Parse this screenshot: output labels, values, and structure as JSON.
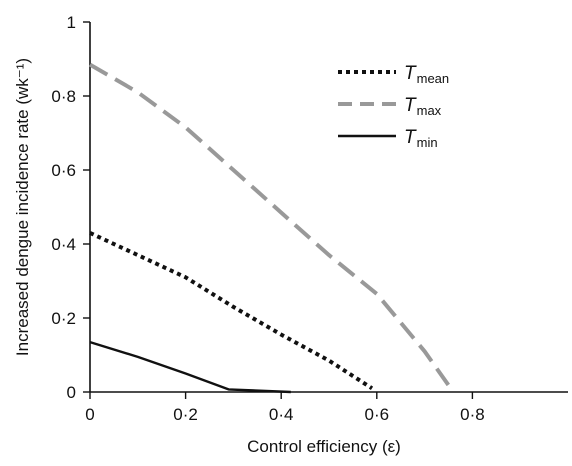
{
  "chart_data": {
    "type": "line",
    "xlabel": "Control efficiency (ε)",
    "ylabel": "Increased dengue incidence rate (wk⁻¹)",
    "xlim": [
      0,
      1
    ],
    "ylim": [
      0,
      1
    ],
    "x_ticks": [
      {
        "value": 0,
        "label": "0"
      },
      {
        "value": 0.2,
        "label": "0·2"
      },
      {
        "value": 0.4,
        "label": "0·4"
      },
      {
        "value": 0.6,
        "label": "0·6"
      },
      {
        "value": 0.8,
        "label": "0·8"
      }
    ],
    "y_ticks": [
      {
        "value": 0,
        "label": "0"
      },
      {
        "value": 0.2,
        "label": "0·2"
      },
      {
        "value": 0.4,
        "label": "0·4"
      },
      {
        "value": 0.6,
        "label": "0·6"
      },
      {
        "value": 0.8,
        "label": "0·8"
      },
      {
        "value": 1,
        "label": "1"
      }
    ],
    "grid": false,
    "legend_position": "top-right",
    "series": [
      {
        "name": "T_mean",
        "symbol": "T",
        "subscript": "mean",
        "style": "dotted",
        "color": "#111111",
        "points": [
          [
            0,
            0.43
          ],
          [
            0.1,
            0.37
          ],
          [
            0.2,
            0.31
          ],
          [
            0.3,
            0.23
          ],
          [
            0.4,
            0.155
          ],
          [
            0.5,
            0.085
          ],
          [
            0.59,
            0.01
          ]
        ]
      },
      {
        "name": "T_max",
        "symbol": "T",
        "subscript": "max",
        "style": "dashed",
        "color": "#999999",
        "points": [
          [
            0,
            0.885
          ],
          [
            0.1,
            0.81
          ],
          [
            0.2,
            0.715
          ],
          [
            0.3,
            0.6
          ],
          [
            0.4,
            0.485
          ],
          [
            0.5,
            0.37
          ],
          [
            0.6,
            0.265
          ],
          [
            0.7,
            0.11
          ],
          [
            0.76,
            0.0
          ]
        ]
      },
      {
        "name": "T_min",
        "symbol": "T",
        "subscript": "min",
        "style": "solid",
        "color": "#111111",
        "points": [
          [
            0,
            0.135
          ],
          [
            0.1,
            0.095
          ],
          [
            0.2,
            0.05
          ],
          [
            0.29,
            0.007
          ],
          [
            0.42,
            0.0
          ]
        ]
      }
    ]
  }
}
